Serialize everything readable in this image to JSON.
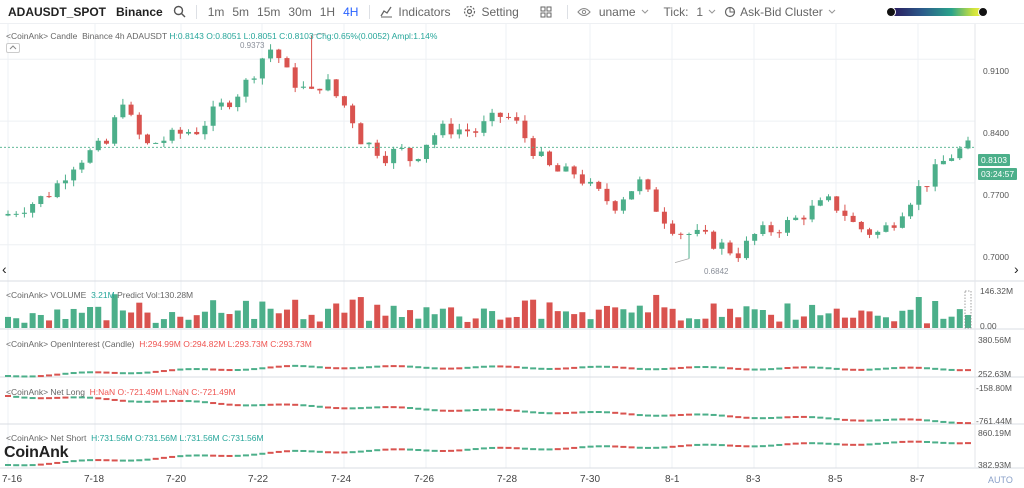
{
  "toolbar": {
    "symbol": "ADAUSDT_SPOT",
    "exchange": "Binance",
    "intervals": [
      "1m",
      "5m",
      "15m",
      "30m",
      "1H",
      "4H"
    ],
    "active_interval": "4H",
    "indicators_label": "Indicators",
    "setting_label": "Setting",
    "user_label": "uname",
    "tick_label": "Tick:",
    "tick_value": "1",
    "cluster_label": "Ask-Bid Cluster"
  },
  "legends": {
    "candle": {
      "name": "<CoinAnk> Candle",
      "info": "Binance 4h ADAUSDT",
      "h": "H:0.8143",
      "o": "O:0.8051",
      "l": "L:0.8051",
      "c": "C:0.8103",
      "chg": "Chg:0.65%(0.0052)",
      "ampl": "Ampl:1.14%"
    },
    "volume": {
      "name": "<CoinAnk> VOLUME",
      "value": "3.21M",
      "predict": "Predict Vol:130.28M"
    },
    "oi": {
      "name": "<CoinAnk> OpenInterest (Candle)",
      "h": "H:294.99M",
      "o": "O:294.82M",
      "l": "L:293.73M",
      "c": "C:293.73M"
    },
    "netlong": {
      "name": "<CoinAnk> Net Long",
      "h": "H:NaN",
      "o": "O:-721.49M",
      "l": "L:NaN",
      "c": "C:-721.49M"
    },
    "netshort": {
      "name": "<CoinAnk> Net Short",
      "h": "H:731.56M",
      "o": "O:731.56M",
      "l": "L:731.56M",
      "c": "C:731.56M"
    }
  },
  "price_axis": [
    "0.9100",
    "0.8400",
    "0.7700",
    "0.7000"
  ],
  "price_ticks": [
    0.91,
    0.84,
    0.77,
    0.7
  ],
  "last_price": "0.8103",
  "countdown": "03:24:57",
  "high_label": "0.9373",
  "low_label": "0.6842",
  "volume_axis": [
    "146.32M",
    "0.00"
  ],
  "oi_axis": [
    "380.56M",
    "252.63M"
  ],
  "netlong_axis": [
    "-158.80M",
    "-761.44M"
  ],
  "netshort_axis": [
    "860.19M",
    "382.93M"
  ],
  "time_axis": [
    "7-16",
    "7-18",
    "7-20",
    "7-22",
    "7-24",
    "7-26",
    "7-28",
    "7-30",
    "8-1",
    "8-3",
    "8-5",
    "8-7"
  ],
  "watermark": "CoinAnk",
  "auto_label": "AUTO",
  "colors": {
    "up": "#4caf8a",
    "down": "#d9534f",
    "accent": "#2962ff",
    "grid": "#eef0f4"
  },
  "chart_data": {
    "type": "candlestick",
    "price_range": [
      0.6842,
      0.9373
    ],
    "close_path": [
      0.735,
      0.742,
      0.748,
      0.755,
      0.77,
      0.79,
      0.8,
      0.808,
      0.815,
      0.87,
      0.83,
      0.812,
      0.818,
      0.822,
      0.828,
      0.83,
      0.845,
      0.858,
      0.87,
      0.885,
      0.91,
      0.925,
      0.895,
      0.88,
      0.87,
      0.888,
      0.868,
      0.852,
      0.818,
      0.81,
      0.8,
      0.808,
      0.795,
      0.815,
      0.828,
      0.832,
      0.83,
      0.828,
      0.838,
      0.846,
      0.842,
      0.82,
      0.8,
      0.785,
      0.78,
      0.782,
      0.765,
      0.755,
      0.745,
      0.76,
      0.77,
      0.748,
      0.73,
      0.715,
      0.712,
      0.708,
      0.702,
      0.695,
      0.69,
      0.71,
      0.715,
      0.72,
      0.725,
      0.735,
      0.742,
      0.748,
      0.74,
      0.722,
      0.715,
      0.713,
      0.725,
      0.745,
      0.762,
      0.775,
      0.793,
      0.805,
      0.81
    ]
  }
}
